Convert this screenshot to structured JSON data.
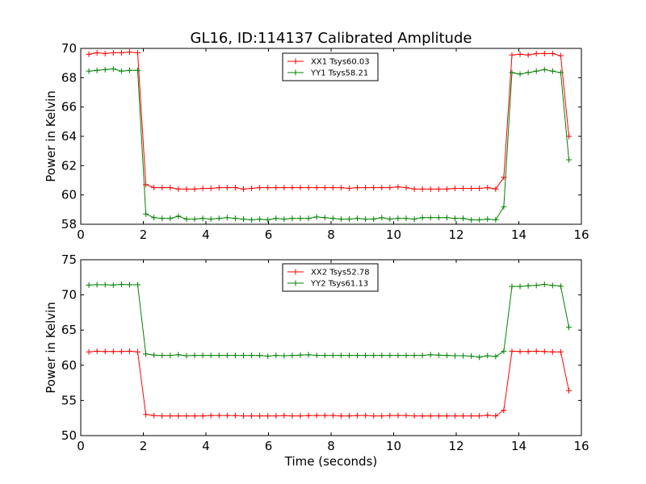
{
  "figure": {
    "title": "GL16, ID:114137 Calibrated Amplitude"
  },
  "chart_data": [
    {
      "type": "line",
      "xlabel": "",
      "ylabel": "Power in Kelvin",
      "xlim": [
        0,
        16
      ],
      "ylim": [
        58,
        70
      ],
      "xticks": [
        0,
        2,
        4,
        6,
        8,
        10,
        12,
        14,
        16
      ],
      "yticks": [
        58,
        60,
        62,
        64,
        66,
        68,
        70
      ],
      "legend": "top-center",
      "grid": false,
      "x": [
        0.26,
        0.52,
        0.78,
        1.04,
        1.3,
        1.56,
        1.82,
        2.08,
        2.34,
        2.6,
        2.86,
        3.12,
        3.38,
        3.64,
        3.9,
        4.16,
        4.42,
        4.68,
        4.94,
        5.2,
        5.46,
        5.72,
        5.98,
        6.24,
        6.5,
        6.76,
        7.02,
        7.28,
        7.54,
        7.8,
        8.06,
        8.32,
        8.58,
        8.84,
        9.1,
        9.36,
        9.62,
        9.88,
        10.14,
        10.4,
        10.66,
        10.92,
        11.18,
        11.44,
        11.7,
        11.96,
        12.22,
        12.48,
        12.74,
        13.0,
        13.26,
        13.52,
        13.78,
        14.04,
        14.3,
        14.56,
        14.82,
        15.08,
        15.34,
        15.6
      ],
      "series": [
        {
          "name": "XX1 Tsys60.03",
          "color": "#ff0000",
          "values": [
            69.6,
            69.7,
            69.65,
            69.7,
            69.7,
            69.75,
            69.7,
            60.7,
            60.5,
            60.5,
            60.5,
            60.4,
            60.4,
            60.4,
            60.45,
            60.45,
            60.5,
            60.5,
            60.5,
            60.4,
            60.45,
            60.5,
            60.5,
            60.5,
            60.5,
            60.5,
            60.5,
            60.5,
            60.5,
            60.5,
            60.5,
            60.5,
            60.45,
            60.5,
            60.5,
            60.5,
            60.5,
            60.5,
            60.55,
            60.5,
            60.4,
            60.4,
            60.4,
            60.4,
            60.4,
            60.45,
            60.45,
            60.45,
            60.45,
            60.5,
            60.4,
            61.2,
            69.55,
            69.6,
            69.55,
            69.65,
            69.65,
            69.65,
            69.5,
            64.0
          ]
        },
        {
          "name": "YY1 Tsys58.21",
          "color": "#008000",
          "values": [
            68.45,
            68.5,
            68.55,
            68.6,
            68.45,
            68.5,
            68.5,
            58.7,
            58.45,
            58.4,
            58.4,
            58.55,
            58.35,
            58.35,
            58.4,
            58.35,
            58.4,
            58.45,
            58.4,
            58.35,
            58.3,
            58.35,
            58.3,
            58.4,
            58.35,
            58.4,
            58.4,
            58.4,
            58.5,
            58.45,
            58.4,
            58.35,
            58.35,
            58.4,
            58.35,
            58.35,
            58.45,
            58.35,
            58.4,
            58.4,
            58.35,
            58.45,
            58.45,
            58.45,
            58.45,
            58.4,
            58.4,
            58.3,
            58.3,
            58.35,
            58.3,
            59.2,
            68.35,
            68.25,
            68.35,
            68.45,
            68.55,
            68.45,
            68.35,
            62.4
          ]
        }
      ]
    },
    {
      "type": "line",
      "xlabel": "Time (seconds)",
      "ylabel": "Power in Kelvin",
      "xlim": [
        0,
        16
      ],
      "ylim": [
        50,
        75
      ],
      "xticks": [
        0,
        2,
        4,
        6,
        8,
        10,
        12,
        14,
        16
      ],
      "yticks": [
        50,
        55,
        60,
        65,
        70,
        75
      ],
      "legend": "top-center",
      "grid": false,
      "x": [
        0.26,
        0.52,
        0.78,
        1.04,
        1.3,
        1.56,
        1.82,
        2.08,
        2.34,
        2.6,
        2.86,
        3.12,
        3.38,
        3.64,
        3.9,
        4.16,
        4.42,
        4.68,
        4.94,
        5.2,
        5.46,
        5.72,
        5.98,
        6.24,
        6.5,
        6.76,
        7.02,
        7.28,
        7.54,
        7.8,
        8.06,
        8.32,
        8.58,
        8.84,
        9.1,
        9.36,
        9.62,
        9.88,
        10.14,
        10.4,
        10.66,
        10.92,
        11.18,
        11.44,
        11.7,
        11.96,
        12.22,
        12.48,
        12.74,
        13.0,
        13.26,
        13.52,
        13.78,
        14.04,
        14.3,
        14.56,
        14.82,
        15.08,
        15.34,
        15.6
      ],
      "series": [
        {
          "name": "XX2 Tsys52.78",
          "color": "#ff0000",
          "values": [
            61.9,
            62.0,
            61.95,
            61.95,
            61.95,
            62.0,
            61.9,
            53.0,
            52.85,
            52.8,
            52.8,
            52.8,
            52.8,
            52.8,
            52.8,
            52.85,
            52.85,
            52.85,
            52.85,
            52.8,
            52.8,
            52.8,
            52.8,
            52.8,
            52.85,
            52.8,
            52.8,
            52.85,
            52.85,
            52.85,
            52.85,
            52.8,
            52.8,
            52.85,
            52.85,
            52.8,
            52.8,
            52.85,
            52.85,
            52.85,
            52.8,
            52.8,
            52.8,
            52.8,
            52.8,
            52.8,
            52.8,
            52.8,
            52.8,
            52.9,
            52.8,
            53.6,
            62.0,
            61.95,
            61.95,
            62.0,
            61.95,
            61.9,
            61.9,
            56.4
          ]
        },
        {
          "name": "YY2 Tsys61.13",
          "color": "#008000",
          "values": [
            71.4,
            71.45,
            71.45,
            71.4,
            71.5,
            71.45,
            71.45,
            61.6,
            61.45,
            61.4,
            61.4,
            61.5,
            61.35,
            61.4,
            61.4,
            61.4,
            61.4,
            61.4,
            61.4,
            61.4,
            61.4,
            61.4,
            61.3,
            61.4,
            61.35,
            61.4,
            61.45,
            61.5,
            61.4,
            61.4,
            61.4,
            61.4,
            61.4,
            61.4,
            61.4,
            61.4,
            61.4,
            61.4,
            61.4,
            61.4,
            61.4,
            61.4,
            61.5,
            61.45,
            61.4,
            61.35,
            61.35,
            61.3,
            61.15,
            61.35,
            61.25,
            62.0,
            71.2,
            71.2,
            71.3,
            71.35,
            71.5,
            71.35,
            71.25,
            65.4
          ]
        }
      ]
    }
  ]
}
